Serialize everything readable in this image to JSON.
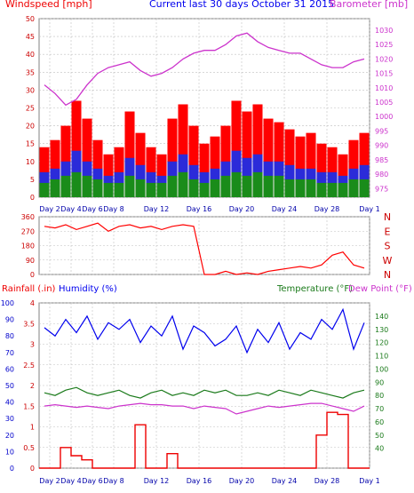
{
  "header": {
    "left": "Windspeed [mph]",
    "center": "Current last 30 days October 31 2015",
    "right": "Barometer [mb]"
  },
  "labels": {
    "rainfall": "Rainfall (.in)",
    "humidity": "Humidity (%)",
    "temperature": "Temperature (°F)",
    "dewpoint": "Dew Point (°F)"
  },
  "colors": {
    "wind_gust": "#ff0000",
    "wind_avg": "#2b2bd9",
    "wind_low": "#1a8c1a",
    "barometer": "#cc33cc",
    "direction": "#ff0000",
    "humidity": "#0000ee",
    "temperature": "#1a7a1a",
    "dewpoint": "#cc33cc",
    "rainfall": "#ee0000",
    "grid": "#c0c0c0",
    "ticklabel_x": "#0000aa"
  },
  "x_ticks": [
    "Day 2",
    "Day 4",
    "Day 6",
    "Day 8",
    "Day 12",
    "Day 16",
    "Day 20",
    "Day 24",
    "Day 28",
    "Day 1"
  ],
  "chart_data": [
    {
      "type": "bar",
      "title": "Current last 30 days October 31 2015",
      "ylabel": "Windspeed [mph]",
      "y2label": "Barometer [mb]",
      "ylim": [
        0,
        50
      ],
      "y_ticks": [
        0,
        5,
        10,
        15,
        20,
        25,
        30,
        35,
        40,
        45,
        50
      ],
      "y2lim": [
        972,
        1034
      ],
      "y2_ticks": [
        975,
        980,
        985,
        990,
        995,
        1000,
        1005,
        1010,
        1015,
        1020,
        1025,
        1030
      ],
      "x_days": [
        1,
        2,
        3,
        4,
        5,
        6,
        7,
        8,
        9,
        10,
        11,
        12,
        13,
        14,
        15,
        16,
        17,
        18,
        19,
        20,
        21,
        22,
        23,
        24,
        25,
        26,
        27,
        28,
        29,
        30,
        31
      ],
      "series": [
        {
          "values": [
            14,
            16,
            20,
            27,
            22,
            16,
            12,
            14,
            24,
            18,
            14,
            12,
            22,
            26,
            20,
            15,
            17,
            20,
            27,
            24,
            26,
            22,
            21,
            19,
            17,
            18,
            15,
            14,
            12,
            16,
            18
          ]
        },
        {
          "values": [
            7,
            8,
            10,
            13,
            10,
            8,
            6,
            7,
            11,
            9,
            7,
            6,
            10,
            12,
            9,
            7,
            8,
            10,
            13,
            11,
            12,
            10,
            10,
            9,
            8,
            8,
            7,
            7,
            6,
            8,
            9
          ]
        },
        {
          "values": [
            4,
            5,
            6,
            7,
            6,
            5,
            4,
            4,
            6,
            5,
            4,
            4,
            6,
            7,
            5,
            4,
            5,
            6,
            7,
            6,
            7,
            6,
            6,
            5,
            5,
            5,
            4,
            4,
            4,
            5,
            5
          ]
        },
        {
          "values": [
            1011,
            1008,
            1004,
            1006,
            1011,
            1015,
            1017,
            1018,
            1019,
            1016,
            1014,
            1015,
            1017,
            1020,
            1022,
            1023,
            1023,
            1025,
            1028,
            1029,
            1026,
            1024,
            1023,
            1022,
            1022,
            1020,
            1018,
            1017,
            1017,
            1019,
            1020
          ]
        }
      ]
    },
    {
      "type": "scatter",
      "ylim": [
        0,
        360
      ],
      "y_ticks": [
        0,
        90,
        180,
        270,
        360
      ],
      "direction_labels": [
        "N",
        "W",
        "S",
        "E",
        "N"
      ],
      "x_days": [
        1,
        2,
        3,
        4,
        5,
        6,
        7,
        8,
        9,
        10,
        11,
        12,
        13,
        14,
        15,
        16,
        17,
        18,
        19,
        20,
        21,
        22,
        23,
        24,
        25,
        26,
        27,
        28,
        29,
        30,
        31
      ],
      "series": [
        {
          "values": [
            300,
            290,
            310,
            280,
            300,
            320,
            270,
            300,
            310,
            290,
            300,
            280,
            300,
            310,
            300,
            0,
            0,
            20,
            0,
            10,
            0,
            20,
            30,
            40,
            50,
            40,
            60,
            120,
            140,
            60,
            40
          ]
        }
      ]
    },
    {
      "type": "line",
      "ylabel": "Rainfall (.in)",
      "ylim": [
        0,
        4
      ],
      "y_ticks": [
        0,
        0.5,
        1,
        1.5,
        2,
        2.5,
        3,
        3.5,
        4
      ],
      "humidity_ylim": [
        0,
        100
      ],
      "humidity_ticks": [
        0,
        10,
        20,
        30,
        40,
        50,
        60,
        70,
        80,
        90,
        100
      ],
      "temp_ylim": [
        25,
        150
      ],
      "temp_ticks": [
        40,
        50,
        60,
        70,
        80,
        90,
        100,
        110,
        120,
        130,
        140
      ],
      "x_days": [
        1,
        2,
        3,
        4,
        5,
        6,
        7,
        8,
        9,
        10,
        11,
        12,
        13,
        14,
        15,
        16,
        17,
        18,
        19,
        20,
        21,
        22,
        23,
        24,
        25,
        26,
        27,
        28,
        29,
        30,
        31
      ],
      "series": [
        {
          "values": [
            85,
            80,
            90,
            82,
            92,
            78,
            88,
            84,
            90,
            76,
            86,
            80,
            92,
            72,
            86,
            82,
            74,
            78,
            86,
            70,
            84,
            76,
            88,
            72,
            82,
            78,
            90,
            84,
            96,
            72,
            88
          ]
        },
        {
          "values": [
            82,
            80,
            84,
            86,
            82,
            80,
            82,
            84,
            80,
            78,
            82,
            84,
            80,
            82,
            80,
            84,
            82,
            84,
            80,
            80,
            82,
            80,
            84,
            82,
            80,
            84,
            82,
            80,
            78,
            82,
            84
          ]
        },
        {
          "values": [
            72,
            73,
            72,
            71,
            72,
            71,
            70,
            72,
            73,
            74,
            73,
            73,
            72,
            72,
            70,
            72,
            71,
            70,
            66,
            68,
            70,
            72,
            71,
            72,
            73,
            74,
            74,
            72,
            70,
            68,
            72
          ]
        },
        {
          "values": [
            0,
            0,
            0.5,
            0.3,
            0.2,
            0,
            0,
            0,
            0,
            1.05,
            0,
            0,
            0.35,
            0,
            0,
            0,
            0,
            0,
            0,
            0,
            0,
            0,
            0,
            0,
            0,
            0,
            0.8,
            1.35,
            1.3,
            0,
            0
          ]
        }
      ]
    }
  ]
}
